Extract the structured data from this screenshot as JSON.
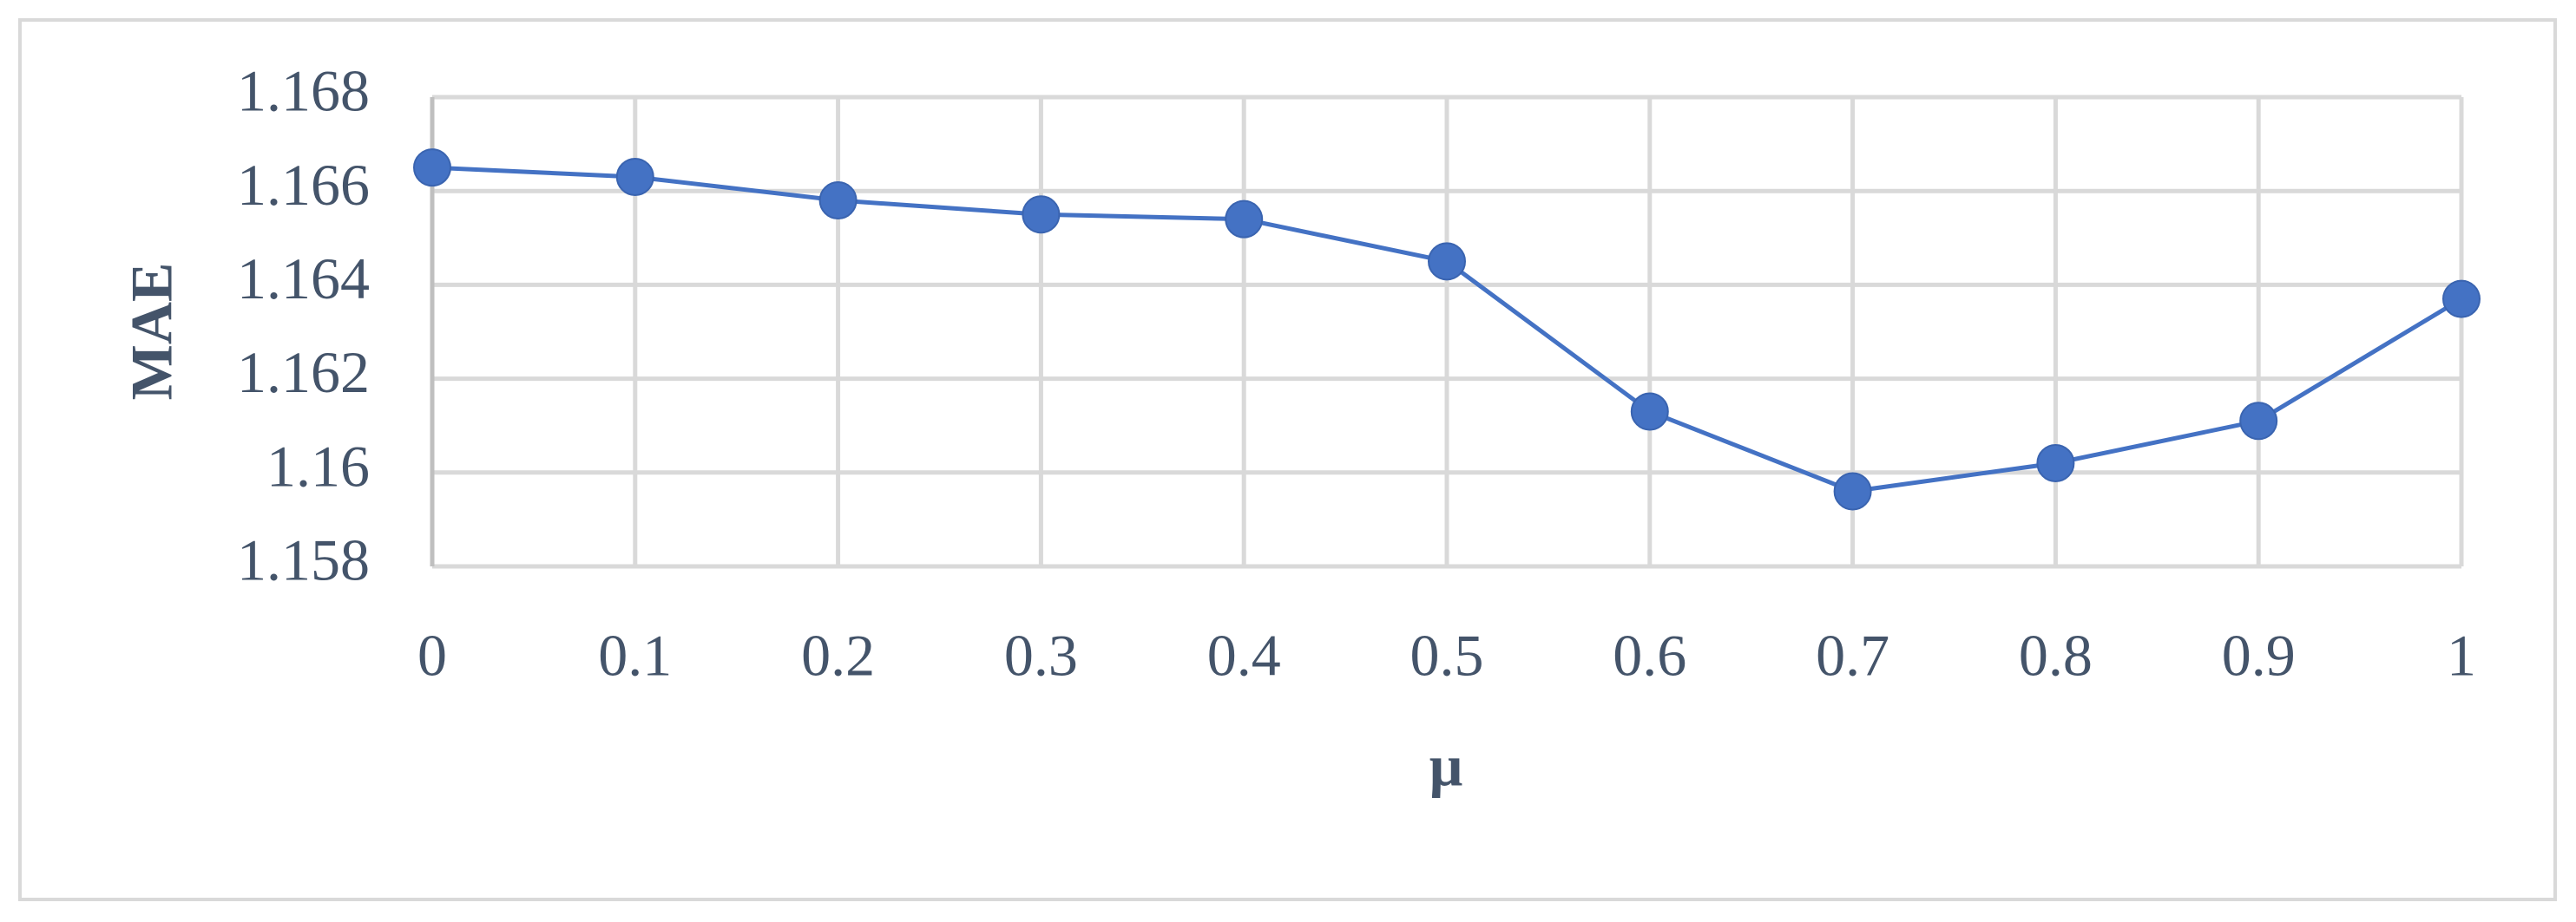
{
  "chart_data": {
    "type": "line",
    "x_label": "μ",
    "y_label": "MAE",
    "x": [
      0,
      0.1,
      0.2,
      0.3,
      0.4,
      0.5,
      0.6,
      0.7,
      0.8,
      0.9,
      1
    ],
    "series": [
      {
        "color": "#4472c4",
        "values": [
          1.1665,
          1.1663,
          1.1658,
          1.1655,
          1.1654,
          1.1645,
          1.1613,
          1.1596,
          1.1602,
          1.1611,
          1.1637
        ]
      }
    ],
    "xlim": [
      0,
      1
    ],
    "xticks": [
      0,
      0.1,
      0.2,
      0.3,
      0.4,
      0.5,
      0.6,
      0.7,
      0.8,
      0.9,
      1
    ],
    "ylim": [
      1.158,
      1.168
    ],
    "yticks": [
      1.158,
      1.16,
      1.162,
      1.164,
      1.166,
      1.168
    ],
    "grid": true
  }
}
